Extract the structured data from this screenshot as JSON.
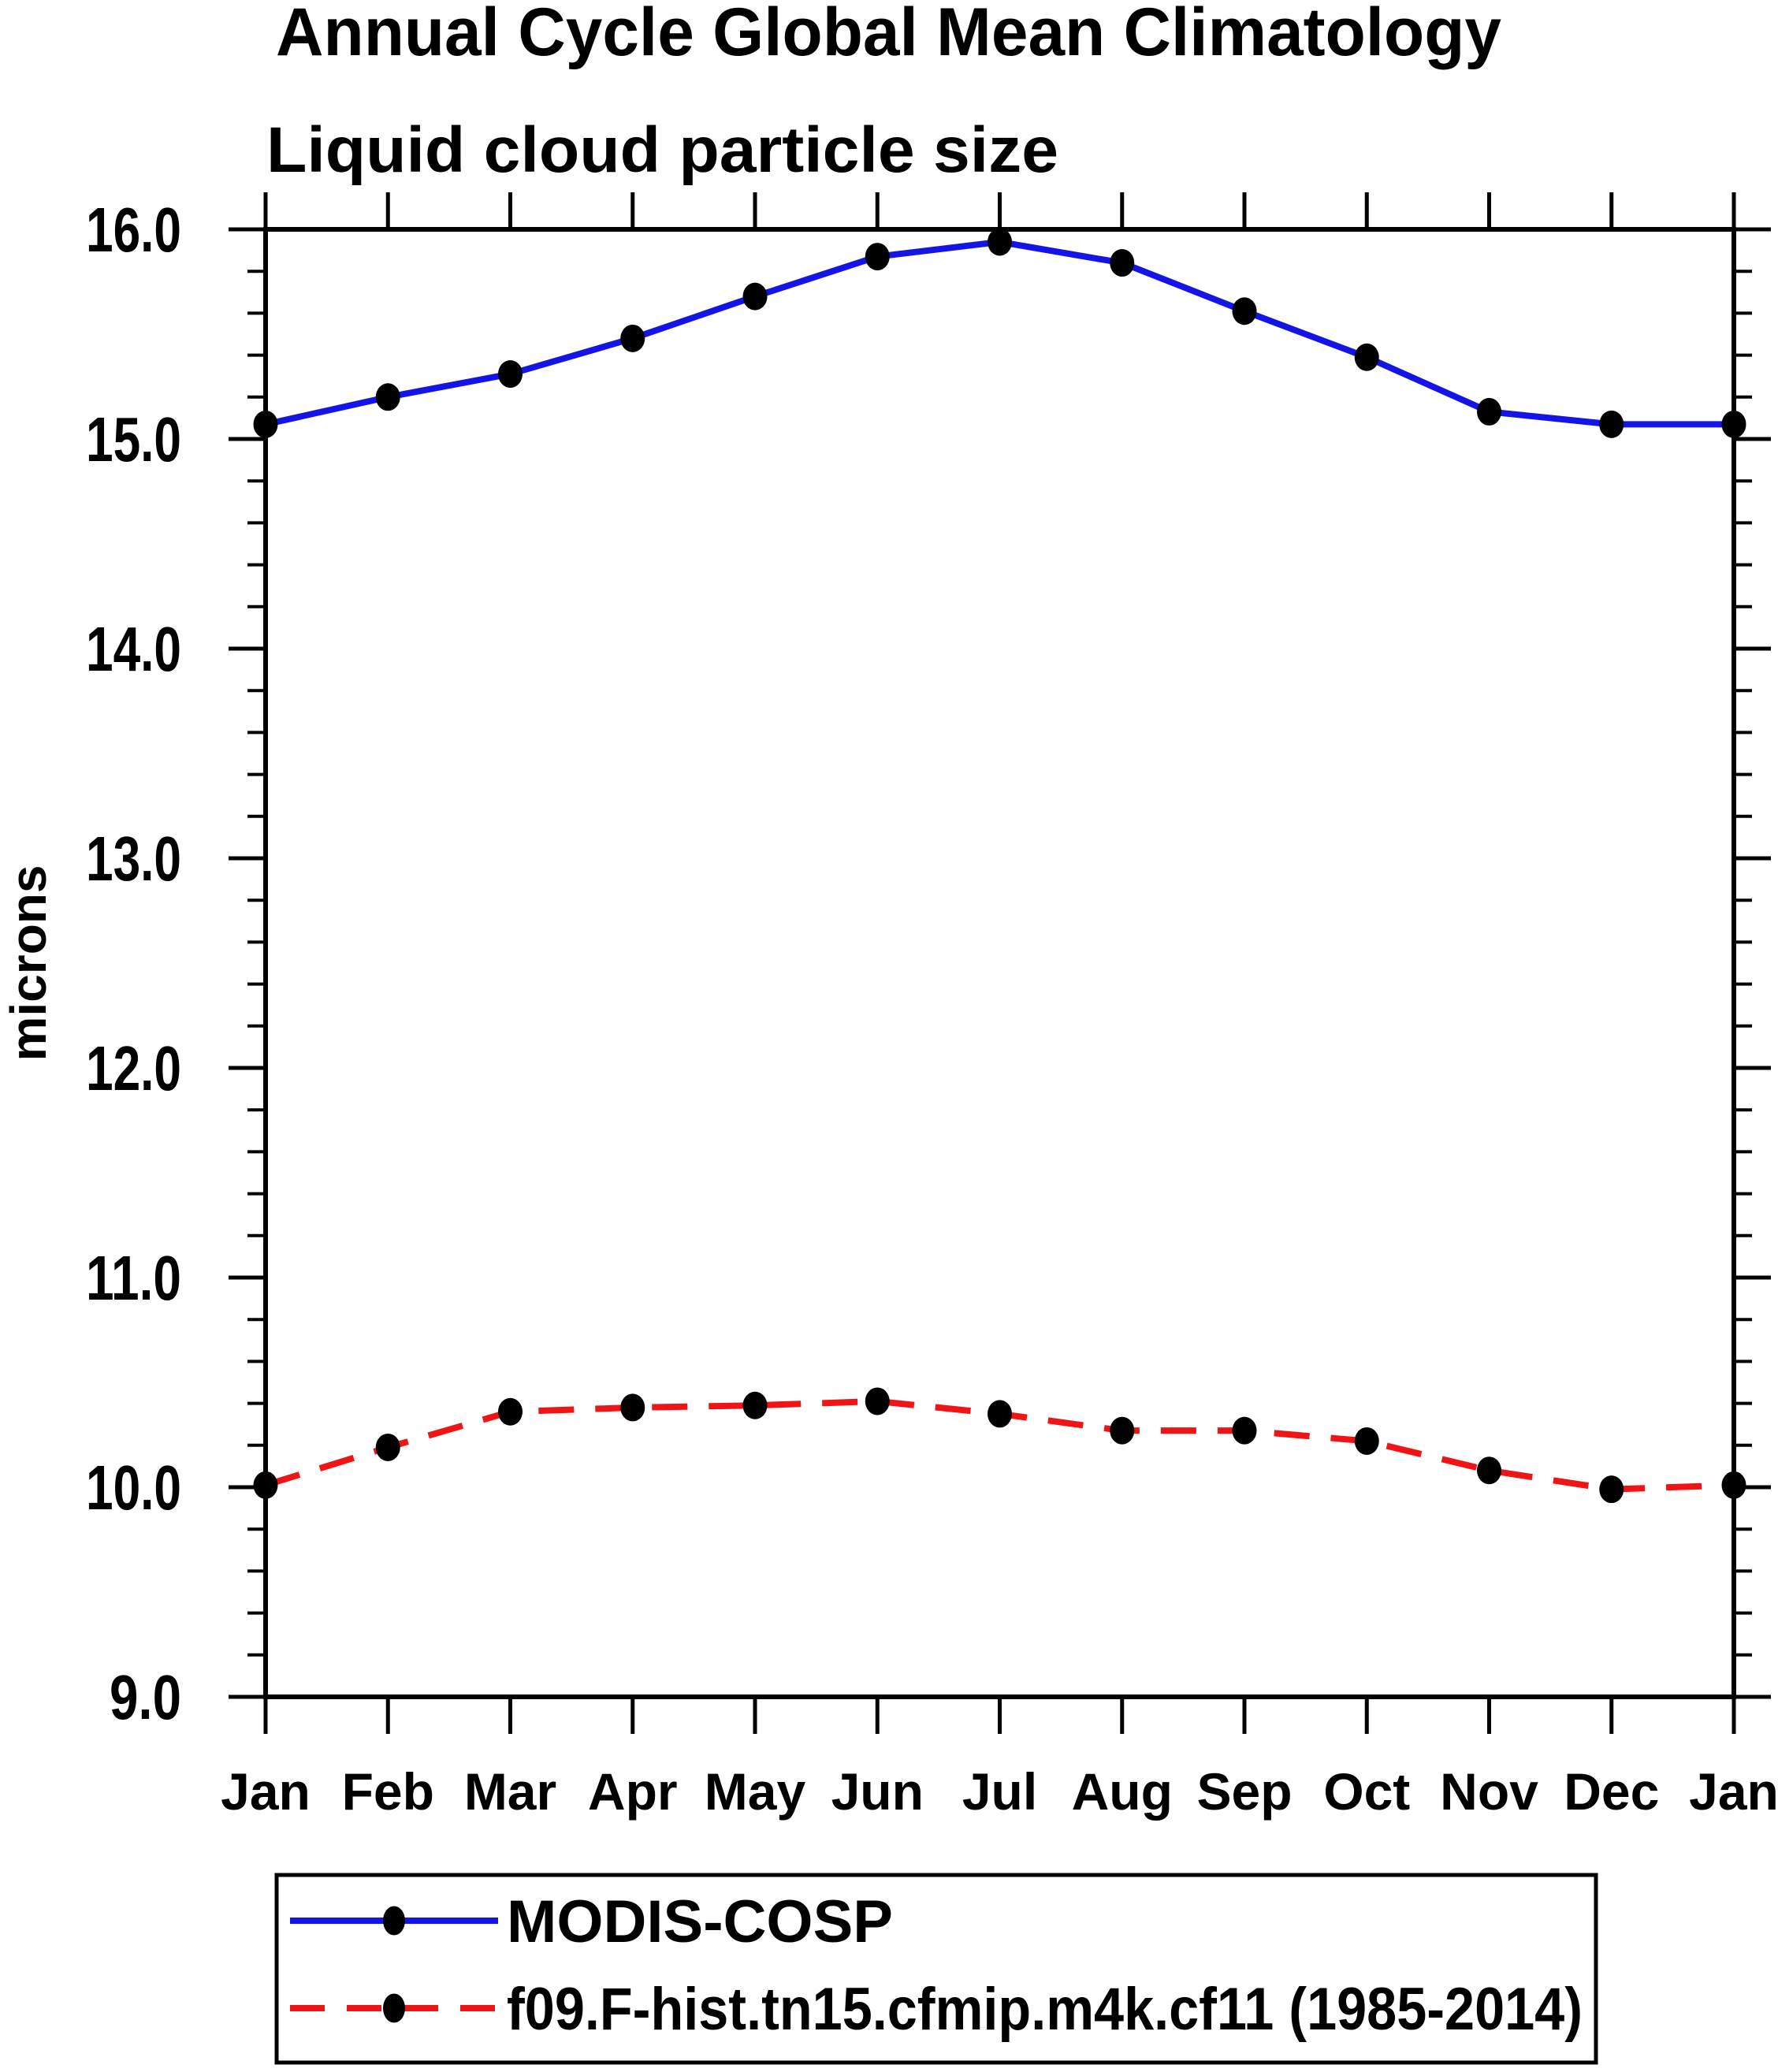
{
  "header": {
    "title": "Annual Cycle Global Mean Climatology",
    "subtitle": "Liquid cloud particle size"
  },
  "chart_data": {
    "type": "line",
    "title": "Annual Cycle Global Mean Climatology",
    "subtitle": "Liquid cloud particle size",
    "xlabel": "",
    "ylabel": "microns",
    "ylim": [
      9.0,
      16.0
    ],
    "ytick_step": 1.0,
    "yminor_step": 0.2,
    "ytick_labels": [
      "9.0",
      "10.0",
      "11.0",
      "12.0",
      "13.0",
      "14.0",
      "15.0",
      "16.0"
    ],
    "grid": false,
    "legend_position": "bottom",
    "frame_color": "#000000",
    "marker_color": "#000000",
    "categories": [
      "Jan",
      "Feb",
      "Mar",
      "Apr",
      "May",
      "Jun",
      "Jul",
      "Aug",
      "Sep",
      "Oct",
      "Nov",
      "Dec",
      "Jan"
    ],
    "series": [
      {
        "name": "MODIS-COSP",
        "color": "#1414e8",
        "style": "solid",
        "marker": "filled-circle",
        "values": [
          15.07,
          15.2,
          15.31,
          15.48,
          15.68,
          15.87,
          15.94,
          15.84,
          15.61,
          15.39,
          15.13,
          15.07,
          15.07
        ]
      },
      {
        "name": "f09.F-hist.tn15.cfmip.m4k.cf11 (1985-2014)",
        "color": "#f01414",
        "style": "dashed",
        "marker": "filled-circle",
        "values": [
          10.01,
          10.19,
          10.36,
          10.38,
          10.39,
          10.41,
          10.35,
          10.27,
          10.27,
          10.22,
          10.08,
          9.99,
          10.01
        ]
      }
    ]
  }
}
